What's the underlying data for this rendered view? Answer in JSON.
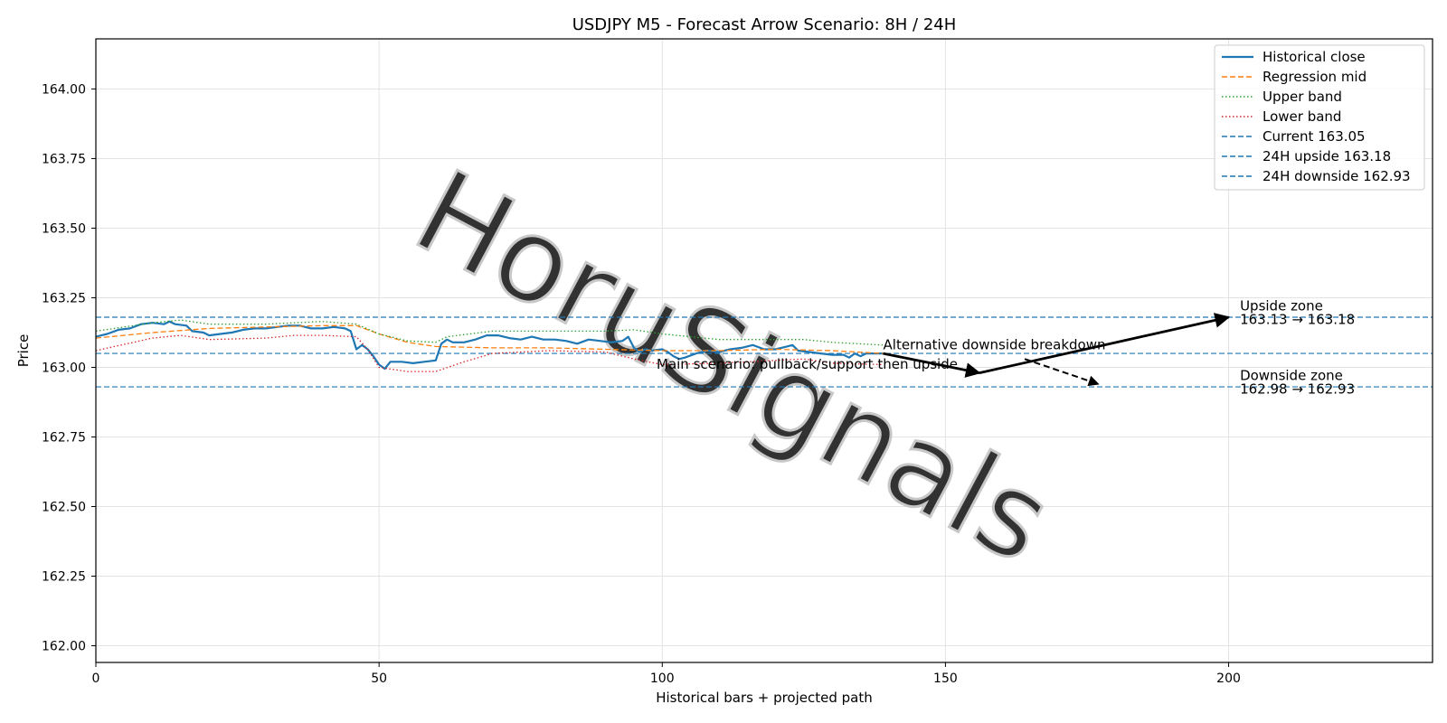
{
  "chart_data": {
    "type": "line",
    "title": "USDJPY M5 - Forecast Arrow Scenario: 8H / 24H",
    "xlabel": "Historical bars + projected path",
    "ylabel": "Price",
    "xlim": [
      0,
      236
    ],
    "ylim": [
      161.94,
      164.18
    ],
    "x_ticks": [
      0,
      50,
      100,
      150,
      200
    ],
    "y_ticks": [
      162.0,
      162.25,
      162.5,
      162.75,
      163.0,
      163.25,
      163.5,
      163.75,
      164.0
    ],
    "grid": true,
    "legend_position": "top-right",
    "series": [
      {
        "name": "Historical close",
        "style": "solid",
        "color": "#1f77b4",
        "points": [
          [
            0,
            163.11
          ],
          [
            2,
            163.12
          ],
          [
            4,
            163.135
          ],
          [
            6,
            163.14
          ],
          [
            8,
            163.155
          ],
          [
            10,
            163.16
          ],
          [
            12,
            163.155
          ],
          [
            13,
            163.165
          ],
          [
            14,
            163.155
          ],
          [
            16,
            163.15
          ],
          [
            17,
            163.13
          ],
          [
            19,
            163.125
          ],
          [
            20,
            163.115
          ],
          [
            22,
            163.12
          ],
          [
            24,
            163.125
          ],
          [
            26,
            163.135
          ],
          [
            28,
            163.14
          ],
          [
            30,
            163.14
          ],
          [
            32,
            163.145
          ],
          [
            34,
            163.15
          ],
          [
            36,
            163.15
          ],
          [
            38,
            163.14
          ],
          [
            40,
            163.14
          ],
          [
            42,
            163.145
          ],
          [
            44,
            163.14
          ],
          [
            45,
            163.13
          ],
          [
            46,
            163.065
          ],
          [
            47,
            163.08
          ],
          [
            48,
            163.065
          ],
          [
            49,
            163.04
          ],
          [
            50,
            163.01
          ],
          [
            51,
            162.995
          ],
          [
            52,
            163.02
          ],
          [
            54,
            163.02
          ],
          [
            56,
            163.015
          ],
          [
            58,
            163.02
          ],
          [
            60,
            163.025
          ],
          [
            61,
            163.085
          ],
          [
            62,
            163.1
          ],
          [
            63,
            163.09
          ],
          [
            65,
            163.09
          ],
          [
            67,
            163.1
          ],
          [
            69,
            163.115
          ],
          [
            71,
            163.115
          ],
          [
            73,
            163.105
          ],
          [
            75,
            163.1
          ],
          [
            77,
            163.11
          ],
          [
            79,
            163.1
          ],
          [
            81,
            163.1
          ],
          [
            83,
            163.095
          ],
          [
            85,
            163.085
          ],
          [
            87,
            163.1
          ],
          [
            89,
            163.095
          ],
          [
            91,
            163.09
          ],
          [
            93,
            163.095
          ],
          [
            94,
            163.11
          ],
          [
            95,
            163.07
          ],
          [
            96,
            163.055
          ],
          [
            97,
            163.065
          ],
          [
            98,
            163.06
          ],
          [
            100,
            163.065
          ],
          [
            101,
            163.055
          ],
          [
            102,
            163.04
          ],
          [
            103,
            163.03
          ],
          [
            104,
            163.035
          ],
          [
            106,
            163.05
          ],
          [
            108,
            163.06
          ],
          [
            110,
            163.055
          ],
          [
            112,
            163.065
          ],
          [
            114,
            163.07
          ],
          [
            116,
            163.08
          ],
          [
            118,
            163.065
          ],
          [
            120,
            163.065
          ],
          [
            122,
            163.075
          ],
          [
            123,
            163.08
          ],
          [
            124,
            163.06
          ],
          [
            126,
            163.055
          ],
          [
            128,
            163.05
          ],
          [
            130,
            163.045
          ],
          [
            132,
            163.045
          ],
          [
            133,
            163.035
          ],
          [
            134,
            163.05
          ],
          [
            135,
            163.04
          ],
          [
            136,
            163.05
          ],
          [
            138,
            163.05
          ],
          [
            139,
            163.05
          ]
        ]
      },
      {
        "name": "Regression mid",
        "style": "dashed",
        "color": "#ff7f0e",
        "points": [
          [
            0,
            163.105
          ],
          [
            10,
            163.125
          ],
          [
            20,
            163.14
          ],
          [
            30,
            163.145
          ],
          [
            40,
            163.15
          ],
          [
            46,
            163.15
          ],
          [
            50,
            163.12
          ],
          [
            55,
            163.09
          ],
          [
            60,
            163.075
          ],
          [
            70,
            163.07
          ],
          [
            80,
            163.07
          ],
          [
            90,
            163.065
          ],
          [
            100,
            163.06
          ],
          [
            110,
            163.06
          ],
          [
            120,
            163.065
          ],
          [
            130,
            163.06
          ],
          [
            139,
            163.05
          ]
        ]
      },
      {
        "name": "Upper band",
        "style": "dotted",
        "color": "#2ca02c",
        "points": [
          [
            0,
            163.13
          ],
          [
            10,
            163.16
          ],
          [
            15,
            163.17
          ],
          [
            20,
            163.155
          ],
          [
            30,
            163.155
          ],
          [
            40,
            163.165
          ],
          [
            46,
            163.155
          ],
          [
            50,
            163.12
          ],
          [
            55,
            163.095
          ],
          [
            60,
            163.09
          ],
          [
            62,
            163.11
          ],
          [
            70,
            163.13
          ],
          [
            80,
            163.13
          ],
          [
            90,
            163.13
          ],
          [
            95,
            163.135
          ],
          [
            100,
            163.12
          ],
          [
            110,
            163.1
          ],
          [
            120,
            163.1
          ],
          [
            125,
            163.1
          ],
          [
            130,
            163.09
          ],
          [
            139,
            163.08
          ]
        ]
      },
      {
        "name": "Lower band",
        "style": "dotted",
        "color": "#d62728",
        "points": [
          [
            0,
            163.06
          ],
          [
            10,
            163.105
          ],
          [
            15,
            163.115
          ],
          [
            20,
            163.1
          ],
          [
            30,
            163.105
          ],
          [
            35,
            163.115
          ],
          [
            40,
            163.115
          ],
          [
            46,
            163.11
          ],
          [
            48,
            163.065
          ],
          [
            50,
            163.0
          ],
          [
            55,
            162.985
          ],
          [
            60,
            162.985
          ],
          [
            65,
            163.02
          ],
          [
            70,
            163.05
          ],
          [
            80,
            163.06
          ],
          [
            90,
            163.055
          ],
          [
            95,
            163.03
          ],
          [
            100,
            163.01
          ],
          [
            110,
            163.015
          ],
          [
            120,
            163.025
          ],
          [
            125,
            163.03
          ],
          [
            130,
            163.015
          ],
          [
            139,
            163.01
          ]
        ]
      }
    ],
    "hlines": [
      {
        "name": "Current 163.05",
        "y": 163.05,
        "color": "#1f77b4"
      },
      {
        "name": "24H upside 163.18",
        "y": 163.18,
        "color": "#1f77b4"
      },
      {
        "name": "24H downside 162.93",
        "y": 162.93,
        "color": "#1f77b4"
      }
    ],
    "arrows": [
      {
        "kind": "main",
        "style": "solid",
        "points": [
          [
            139,
            163.05
          ],
          [
            156,
            162.98
          ],
          [
            200,
            163.18
          ]
        ]
      },
      {
        "kind": "alternative",
        "style": "dashed",
        "points": [
          [
            164,
            163.03
          ],
          [
            177,
            162.94
          ]
        ]
      }
    ],
    "annotations": [
      {
        "text": "Alternative downside breakdown",
        "x": 139,
        "y": 163.065
      },
      {
        "text": "Main scenario: pullback/support then upside",
        "x": 99,
        "y": 162.995
      },
      {
        "text": "Upside zone",
        "x": 202,
        "y": 163.205
      },
      {
        "text": "163.13 → 163.18",
        "x": 202,
        "y": 163.155
      },
      {
        "text": "Downside zone",
        "x": 202,
        "y": 162.955
      },
      {
        "text": "162.98 → 162.93",
        "x": 202,
        "y": 162.905
      }
    ],
    "watermark": "HoruSignals"
  }
}
